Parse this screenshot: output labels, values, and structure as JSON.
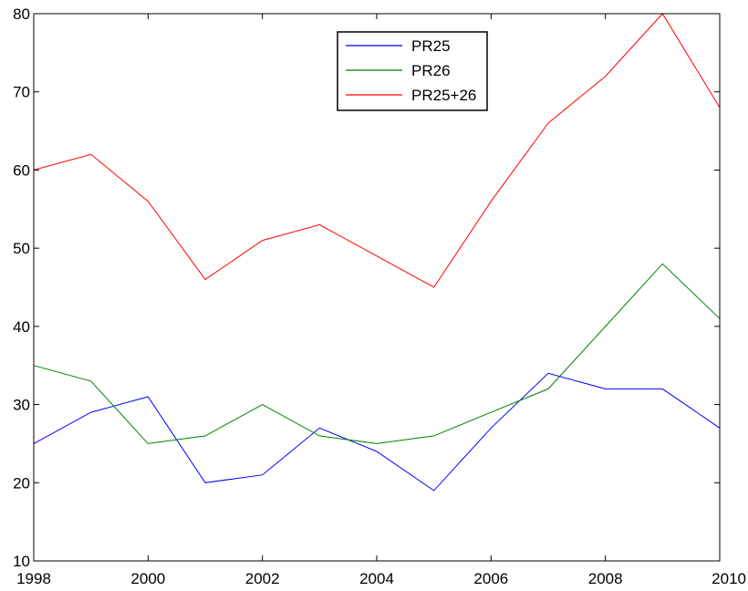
{
  "chart_data": {
    "type": "line",
    "title": "",
    "xlabel": "",
    "ylabel": "",
    "xlim": [
      1998,
      2010
    ],
    "ylim": [
      10,
      80
    ],
    "xticks": [
      1998,
      2000,
      2002,
      2004,
      2006,
      2008,
      2010
    ],
    "yticks": [
      10,
      20,
      30,
      40,
      50,
      60,
      70,
      80
    ],
    "x": [
      1998,
      1999,
      2000,
      2001,
      2002,
      2003,
      2004,
      2005,
      2006,
      2007,
      2008,
      2009,
      2010
    ],
    "series": [
      {
        "name": "PR25",
        "color": "#0000ff",
        "values": [
          25,
          29,
          31,
          20,
          21,
          27,
          24,
          19,
          27,
          34,
          32,
          32,
          27
        ]
      },
      {
        "name": "PR26",
        "color": "#008000",
        "values": [
          35,
          33,
          25,
          26,
          30,
          26,
          25,
          26,
          29,
          32,
          40,
          48,
          41
        ]
      },
      {
        "name": "PR25+26",
        "color": "#ff0000",
        "values": [
          60,
          62,
          56,
          46,
          51,
          53,
          49,
          45,
          56,
          66,
          72,
          80,
          68
        ]
      }
    ],
    "grid": false,
    "legend": "top-center"
  }
}
